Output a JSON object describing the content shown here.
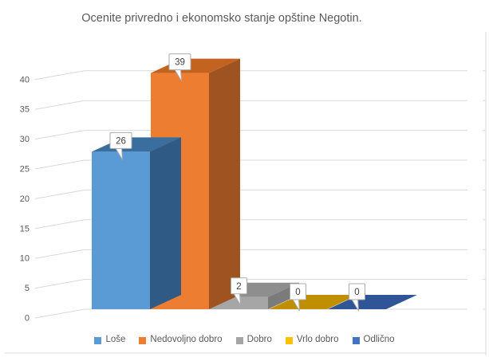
{
  "chart_data": {
    "type": "bar",
    "style": "3d-clustered-column",
    "title": "Ocenite privredno i ekonomsko stanje opštine Negotin.",
    "categories": [
      "Loše",
      "Nedovoljno dobro",
      "Dobro",
      "Vrlo dobro",
      "Odlično"
    ],
    "values": [
      26,
      39,
      2,
      0,
      0
    ],
    "data_labels": [
      "26",
      "39",
      "2",
      "0",
      "0"
    ],
    "xlabel": "",
    "ylabel": "",
    "ylim": [
      0,
      40
    ],
    "yticks": [
      0,
      5,
      10,
      15,
      20,
      25,
      30,
      35,
      40
    ],
    "grid": true,
    "legend_position": "bottom",
    "category_slugs": [
      "lose",
      "nedovoljno-dobro",
      "dobro",
      "vrlo-dobro",
      "odlicno"
    ],
    "bar_colors": [
      {
        "front": "#5B9BD5",
        "top": "#3A6E9E",
        "side": "#2E5A85"
      },
      {
        "front": "#ED7D31",
        "top": "#C4631F",
        "side": "#9E5320"
      },
      {
        "front": "#A6A6A6",
        "top": "#8E8E8E",
        "side": "#7B7B7B"
      },
      {
        "front": "#FFC000",
        "top": "#BF8F00",
        "side": "#997300"
      },
      {
        "front": "#4472C4",
        "top": "#2F5597",
        "side": "#24427A"
      }
    ],
    "legend_swatch_colors": [
      "#5B9BD5",
      "#ED7D31",
      "#A5A5A5",
      "#FFC000",
      "#4472C4"
    ]
  },
  "colors": {
    "title_text": "#595959",
    "axis_text": "#595959",
    "gridline": "#D9D9D9",
    "chart_border": "#D9D9D9",
    "data_label_text": "#404040",
    "data_label_border": "#ABABAB",
    "data_label_fill": "#FFFFFF",
    "background": "#FFFFFF"
  }
}
